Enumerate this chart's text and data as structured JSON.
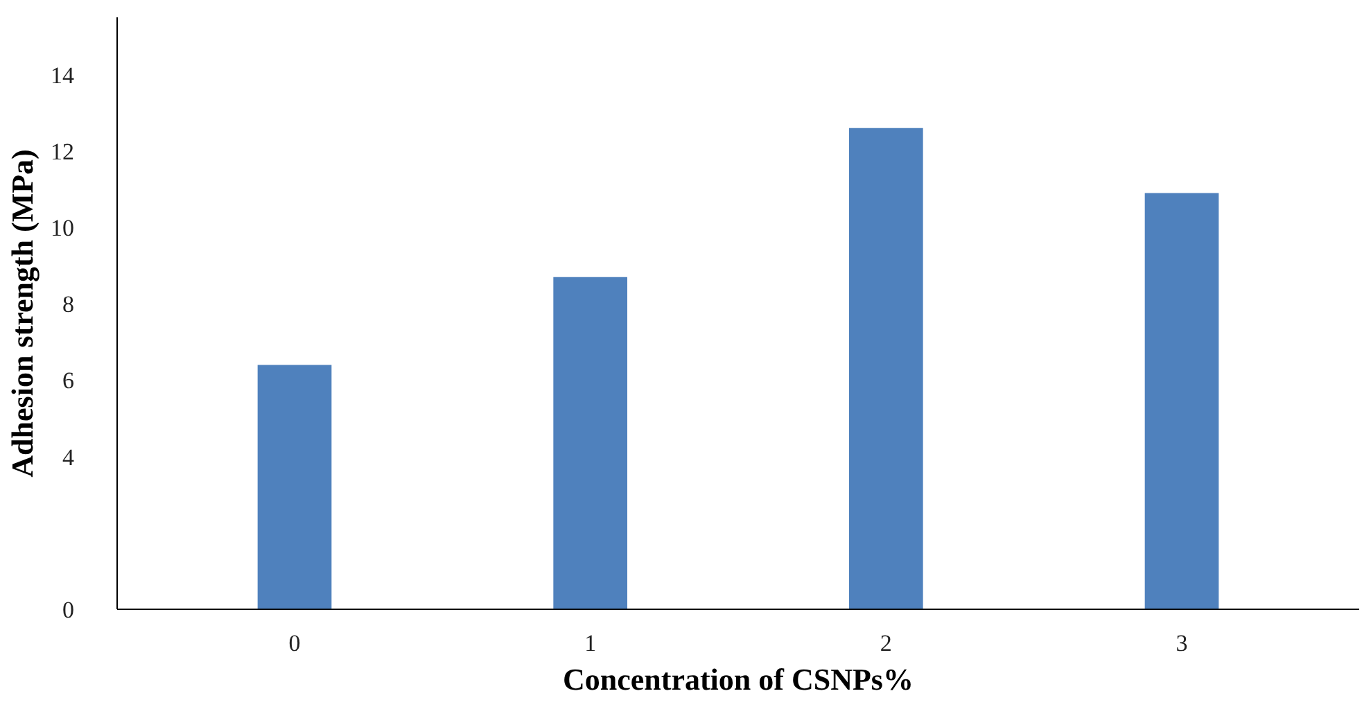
{
  "chart_data": {
    "type": "bar",
    "xlabel": "Concentration of CSNPs%",
    "ylabel": "Adhesion strength (MPa)",
    "categories": [
      "0",
      "1",
      "2",
      "3"
    ],
    "values": [
      6.4,
      8.7,
      12.6,
      10.9
    ],
    "color": "#4f81bd",
    "ylim": [
      0,
      15.5
    ],
    "yticks": [
      0,
      4,
      6,
      8,
      10,
      12,
      14
    ],
    "grid": false
  }
}
